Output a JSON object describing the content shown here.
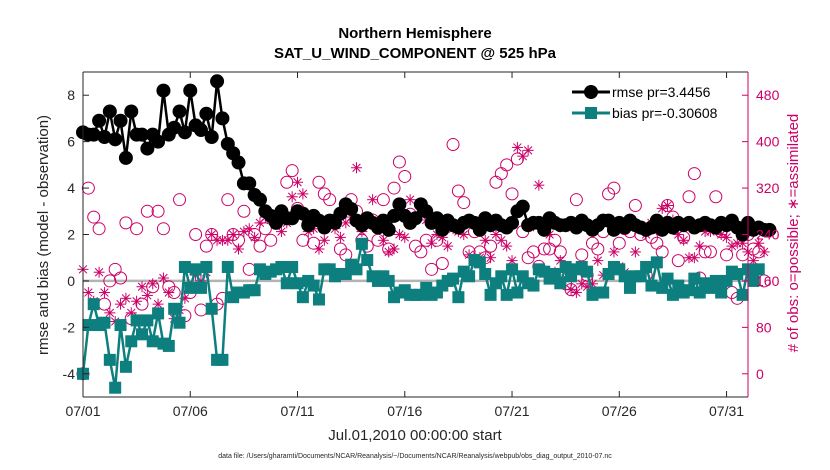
{
  "chart_data": {
    "type": "line",
    "title": "Northern Hemisphere",
    "subtitle": "SAT_U_WIND_COMPONENT @ 525 hPa",
    "xlabel": "Jul.01,2010 00:00:00 start",
    "ylabel_left": "rmse and bias (model - observation)",
    "ylabel_right": "# of obs: o=possible; ∗=assimilated",
    "footnote": "data file: /Users/gharamti/Documents/NCAR/Reanalysis/~/Documents/NCAR/Reanalysis/webpub/obs_diag_output_2010-07.nc",
    "x_ticks": [
      1,
      6,
      11,
      16,
      21,
      26,
      31
    ],
    "x_tick_labels": [
      "07/01",
      "07/06",
      "07/11",
      "07/16",
      "07/21",
      "07/26",
      "07/31"
    ],
    "xlim": [
      1,
      32
    ],
    "ylim_left": [
      -5,
      9
    ],
    "yticks_left": [
      -4,
      -2,
      0,
      2,
      4,
      6,
      8
    ],
    "ylim_right": [
      -40,
      520
    ],
    "yticks_right": [
      0,
      80,
      160,
      240,
      320,
      400,
      480
    ],
    "grid": false,
    "legend_position": "top-right",
    "zero_line": 0,
    "colors": {
      "rmse": "#000000",
      "bias": "#0d7f7f",
      "obs": "#cc0066",
      "zero_line": "#b3b3b3",
      "axis": "#262626"
    },
    "series": [
      {
        "name": "rmse pr=3.4456",
        "axis": "left",
        "marker": "circle",
        "x_start": 1,
        "x_step": 0.25,
        "values": [
          6.4,
          6.3,
          6.3,
          6.9,
          6.2,
          7.3,
          6.1,
          6.9,
          5.3,
          7.3,
          6.3,
          6.3,
          5.7,
          6.3,
          6.0,
          8.2,
          6.3,
          6.6,
          7.3,
          6.4,
          8.2,
          6.7,
          6.5,
          7.2,
          6.2,
          8.6,
          7.0,
          5.9,
          5.5,
          5.1,
          4.2,
          4.2,
          3.7,
          3.5,
          3.0,
          2.8,
          2.5,
          3.0,
          2.7,
          2.7,
          3.0,
          2.9,
          2.4,
          2.8,
          2.6,
          2.3,
          2.6,
          2.5,
          2.9,
          3.3,
          3.1,
          2.6,
          2.4,
          2.7,
          2.5,
          2.3,
          2.6,
          2.2,
          2.8,
          3.3,
          2.8,
          2.5,
          2.7,
          3.3,
          3.0,
          2.5,
          2.7,
          2.2,
          2.6,
          2.4,
          2.3,
          2.5,
          2.6,
          2.5,
          2.2,
          2.7,
          2.4,
          2.6,
          2.4,
          2.3,
          2.5,
          3.0,
          3.2,
          2.4,
          2.5,
          2.5,
          2.2,
          2.7,
          2.5,
          2.4,
          2.4,
          2.5,
          2.3,
          2.6,
          2.4,
          2.2,
          2.4,
          2.6,
          2.6,
          2.2,
          2.5,
          2.3,
          2.6,
          2.4,
          2.3,
          2.2,
          2.3,
          2.6,
          2.2,
          2.5,
          2.3,
          2.5,
          2.4,
          2.5,
          2.3,
          2.4,
          2.5,
          2.4,
          2.3,
          2.5,
          2.4,
          2.6,
          2.3,
          2.0,
          2.5,
          2.2,
          2.3,
          2.2,
          2.2
        ]
      },
      {
        "name": "bias pr=-0.30608",
        "axis": "left",
        "marker": "square",
        "x_start": 1,
        "x_step": 0.25,
        "values": [
          -4.0,
          -1.9,
          -1.0,
          -1.9,
          -1.8,
          -3.4,
          -4.6,
          -1.9,
          -3.7,
          -2.6,
          -1.7,
          -2.3,
          -1.7,
          -2.6,
          -1.4,
          -2.7,
          -2.8,
          -1.2,
          -1.8,
          0.6,
          -0.3,
          0.5,
          -0.3,
          0.6,
          -1.2,
          -3.4,
          -3.4,
          0.6,
          -0.7,
          -0.5,
          -0.5,
          -0.4,
          -0.4,
          0.5,
          0.3,
          0.4,
          0.5,
          0.6,
          -0.1,
          0.6,
          -0.1,
          -0.7,
          0.0,
          -0.2,
          -0.8,
          0.5,
          0.5,
          0.2,
          0.3,
          0.3,
          0.7,
          0.5,
          1.6,
          0.9,
          0.2,
          0.0,
          0.2,
          0.0,
          -0.7,
          -0.5,
          -0.4,
          -0.6,
          -0.6,
          -0.6,
          -0.3,
          -0.6,
          -0.5,
          -0.2,
          0.0,
          0.1,
          -0.7,
          0.4,
          0.2,
          0.9,
          0.8,
          0.3,
          -0.6,
          -0.1,
          0.2,
          -0.6,
          0.5,
          -0.5,
          0.2,
          -0.1,
          -0.2,
          0.5,
          0.4,
          0.1,
          0.3,
          -0.1,
          0.6,
          0.2,
          0.5,
          0.6,
          0.4,
          -0.6,
          -0.5,
          -0.5,
          0.3,
          0.6,
          0.5,
          0.2,
          -0.3,
          0.2,
          0.2,
          0.6,
          -0.2,
          0.8,
          -0.3,
          0.1,
          -0.6,
          -0.2,
          -0.5,
          -0.4,
          0.1,
          -0.5,
          -0.1,
          -0.3,
          0.0,
          -0.5,
          0.0,
          0.4,
          0.3,
          -0.6,
          0.5,
          0.0,
          0.5
        ]
      },
      {
        "name": "possible",
        "axis": "right",
        "marker": "circle-open",
        "x_start": 1,
        "x_step": 0.25,
        "values": [
          0,
          320,
          270,
          250,
          120,
          160,
          180,
          165,
          260,
          95,
          250,
          120,
          280,
          150,
          280,
          250,
          150,
          140,
          300,
          100,
          140,
          240,
          110,
          220,
          240,
          120,
          130,
          300,
          240,
          230,
          280,
          180,
          240,
          220,
          250,
          230,
          260,
          280,
          330,
          350,
          285,
          230,
          260,
          225,
          330,
          310,
          300,
          265,
          215,
          205,
          300,
          280,
          230,
          220,
          265,
          230,
          300,
          215,
          320,
          365,
          340,
          275,
          220,
          210,
          230,
          180,
          230,
          190,
          265,
          395,
          315,
          295,
          210,
          245,
          210,
          200,
          220,
          330,
          345,
          360,
          310,
          370,
          245,
          200,
          210,
          185,
          215,
          215,
          230,
          210,
          155,
          145,
          300,
          205,
          170,
          225,
          215,
          245,
          310,
          320,
          225,
          250,
          245,
          290,
          240,
          170,
          235,
          225,
          210,
          290,
          270,
          195,
          235,
          305,
          345,
          165,
          210,
          210,
          305,
          245,
          205,
          140,
          130,
          205,
          240,
          215,
          210,
          160
        ]
      },
      {
        "name": "assimilated",
        "axis": "right",
        "marker": "asterisk",
        "x_start": 1,
        "x_step": 0.25,
        "values": [
          180,
          140,
          125,
          175,
          140,
          105,
          90,
          120,
          130,
          105,
          125,
          150,
          135,
          155,
          120,
          165,
          140,
          95,
          110,
          130,
          150,
          170,
          160,
          175,
          240,
          230,
          230,
          230,
          240,
          215,
          245,
          250,
          235,
          260,
          270,
          265,
          260,
          245,
          260,
          305,
          330,
          310,
          245,
          250,
          215,
          230,
          260,
          250,
          235,
          260,
          270,
          355,
          245,
          260,
          300,
          250,
          230,
          210,
          215,
          240,
          235,
          300,
          270,
          275,
          265,
          225,
          240,
          235,
          220,
          250,
          245,
          240,
          205,
          260,
          200,
          230,
          200,
          240,
          230,
          220,
          195,
          390,
          375,
          385,
          255,
          325,
          250,
          240,
          175,
          195,
          165,
          145,
          140,
          155,
          150,
          155,
          195,
          170,
          265,
          210,
          185,
          175,
          165,
          210,
          250,
          240,
          260,
          265,
          285,
          290,
          265,
          240,
          230,
          200,
          200,
          220,
          245,
          245,
          250,
          240,
          235,
          220,
          225,
          225,
          210,
          195,
          225,
          210
        ]
      }
    ]
  }
}
